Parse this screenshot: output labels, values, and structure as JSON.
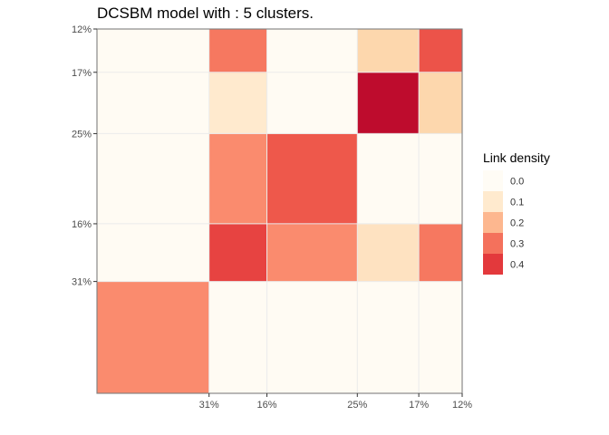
{
  "chart_data": {
    "type": "heatmap",
    "title": "DCSBM model with : 5 clusters.",
    "xlabel": "",
    "ylabel": "",
    "clusters": [
      {
        "share": 0.31,
        "label": "31%"
      },
      {
        "share": 0.16,
        "label": "16%"
      },
      {
        "share": 0.25,
        "label": "25%"
      },
      {
        "share": 0.17,
        "label": "17%"
      },
      {
        "share": 0.12,
        "label": "12%"
      }
    ],
    "x_order": [
      0,
      1,
      2,
      3,
      4
    ],
    "y_order_top_to_bottom": [
      4,
      3,
      2,
      1,
      0
    ],
    "matrix": [
      [
        0.26,
        0.005,
        0.005,
        0.005,
        0.005
      ],
      [
        0.005,
        0.38,
        0.26,
        0.12,
        0.29
      ],
      [
        0.005,
        0.26,
        0.34,
        0.005,
        0.005
      ],
      [
        0.005,
        0.1,
        0.005,
        0.48,
        0.15
      ],
      [
        0.005,
        0.29,
        0.005,
        0.15,
        0.35
      ]
    ],
    "color_range": [
      0,
      0.5
    ],
    "grid": true,
    "legend": {
      "title": "Link density",
      "position": "right",
      "labels": [
        "0.0",
        "0.1",
        "0.2",
        "0.3",
        "0.4"
      ],
      "values": [
        0.0,
        0.1,
        0.2,
        0.3,
        0.4
      ]
    }
  }
}
